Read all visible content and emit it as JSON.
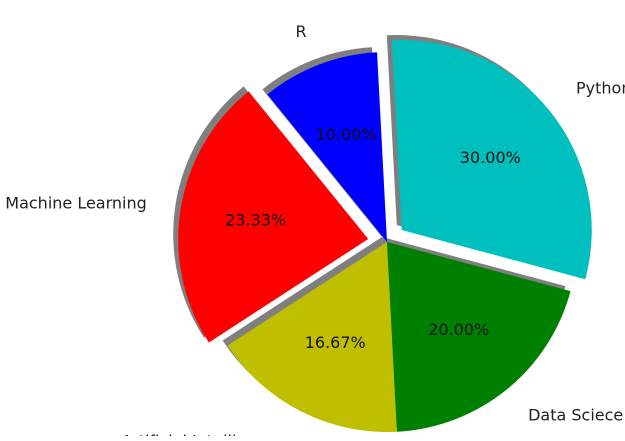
{
  "chart_data": {
    "type": "pie",
    "title": "",
    "categories": [
      "Python",
      "R",
      "Machine Learning",
      "Artificial Intelligence",
      "Data Sciece"
    ],
    "values": [
      30.0,
      10.0,
      23.33,
      16.67,
      20.0
    ],
    "percent_labels": [
      "30.00%",
      "10.00%",
      "23.33%",
      "16.67%",
      "20.00%"
    ],
    "colors": [
      "#00bfbf",
      "#0000ff",
      "#ff0000",
      "#bfbf00",
      "#008000"
    ],
    "exploded": [
      "Python",
      "Machine Learning"
    ],
    "shadow": true,
    "legend": "none"
  }
}
